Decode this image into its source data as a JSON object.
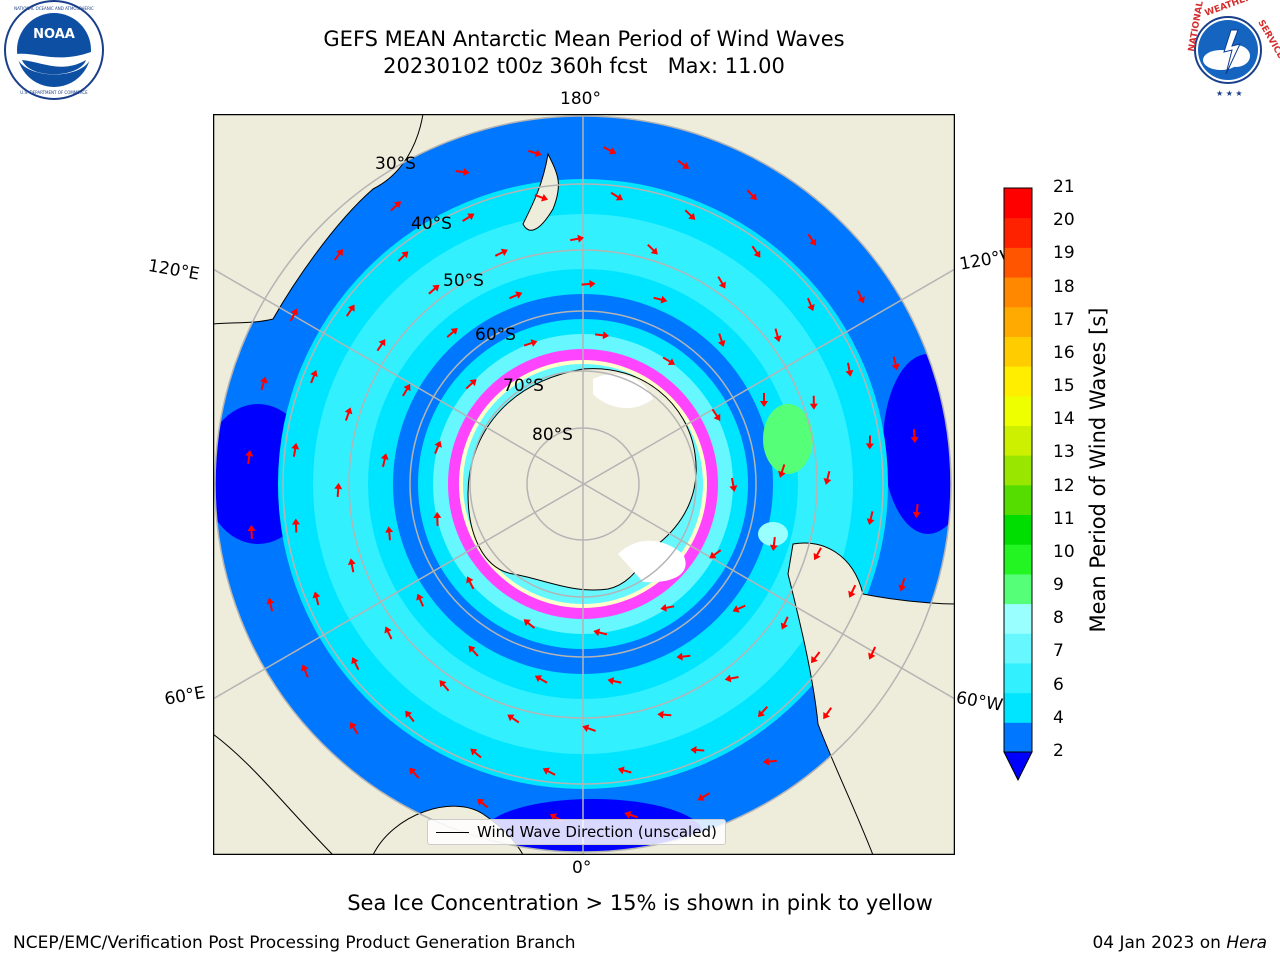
{
  "title": {
    "line1": "GEFS MEAN Antarctic Mean Period of Wind Waves",
    "line2": "20230102 t00z 360h fcst   Max: 11.00"
  },
  "logos": {
    "left": {
      "icon": "noaa-logo-icon",
      "text": "NOAA",
      "ring_text": "NATIONAL OCEANIC AND ATMOSPHERIC ADMINISTRATION · U.S. DEPARTMENT OF COMMERCE"
    },
    "right": {
      "icon": "nws-logo-icon",
      "ring_text": "NATIONAL WEATHER SERVICE"
    }
  },
  "map": {
    "projection": "south-polar-stereographic",
    "longitude_labels": {
      "top": "180°",
      "bottom": "0°",
      "left_upper": "120°E",
      "left_lower": "60°E",
      "right_upper": "120°W",
      "right_lower": "60°W"
    },
    "latitude_labels": [
      "30°S",
      "40°S",
      "50°S",
      "60°S",
      "70°S",
      "80°S"
    ],
    "colors": {
      "land": "#eeecda",
      "ocean_outside": "#ffffff",
      "grid": "#b4b4b4",
      "arrow": "#ff0000"
    }
  },
  "legend": {
    "label": "Wind Wave Direction (unscaled)"
  },
  "colorbar": {
    "title": "Mean Period of Wind Waves [s]",
    "ticks": [
      "2",
      "4",
      "6",
      "7",
      "8",
      "9",
      "10",
      "11",
      "12",
      "13",
      "14",
      "15",
      "16",
      "17",
      "18",
      "19",
      "20",
      "21"
    ],
    "under_color": "#0000ff",
    "level_colors": [
      "#0077ff",
      "#00e5ff",
      "#33f0ff",
      "#66f7ff",
      "#99ffff",
      "#55ff77",
      "#22f522",
      "#00dd00",
      "#55dd00",
      "#99e600",
      "#ccf000",
      "#eeff00",
      "#ffee00",
      "#ffcc00",
      "#ffaa00",
      "#ff8800",
      "#ff5500",
      "#ff2200",
      "#ff0000"
    ]
  },
  "note": "Sea Ice Concentration > 15% is shown in pink to yellow",
  "footer": {
    "left": "NCEP/EMC/Verification Post Processing Product Generation Branch",
    "right_date": "04 Jan 2023 on",
    "right_machine": "Hera"
  }
}
